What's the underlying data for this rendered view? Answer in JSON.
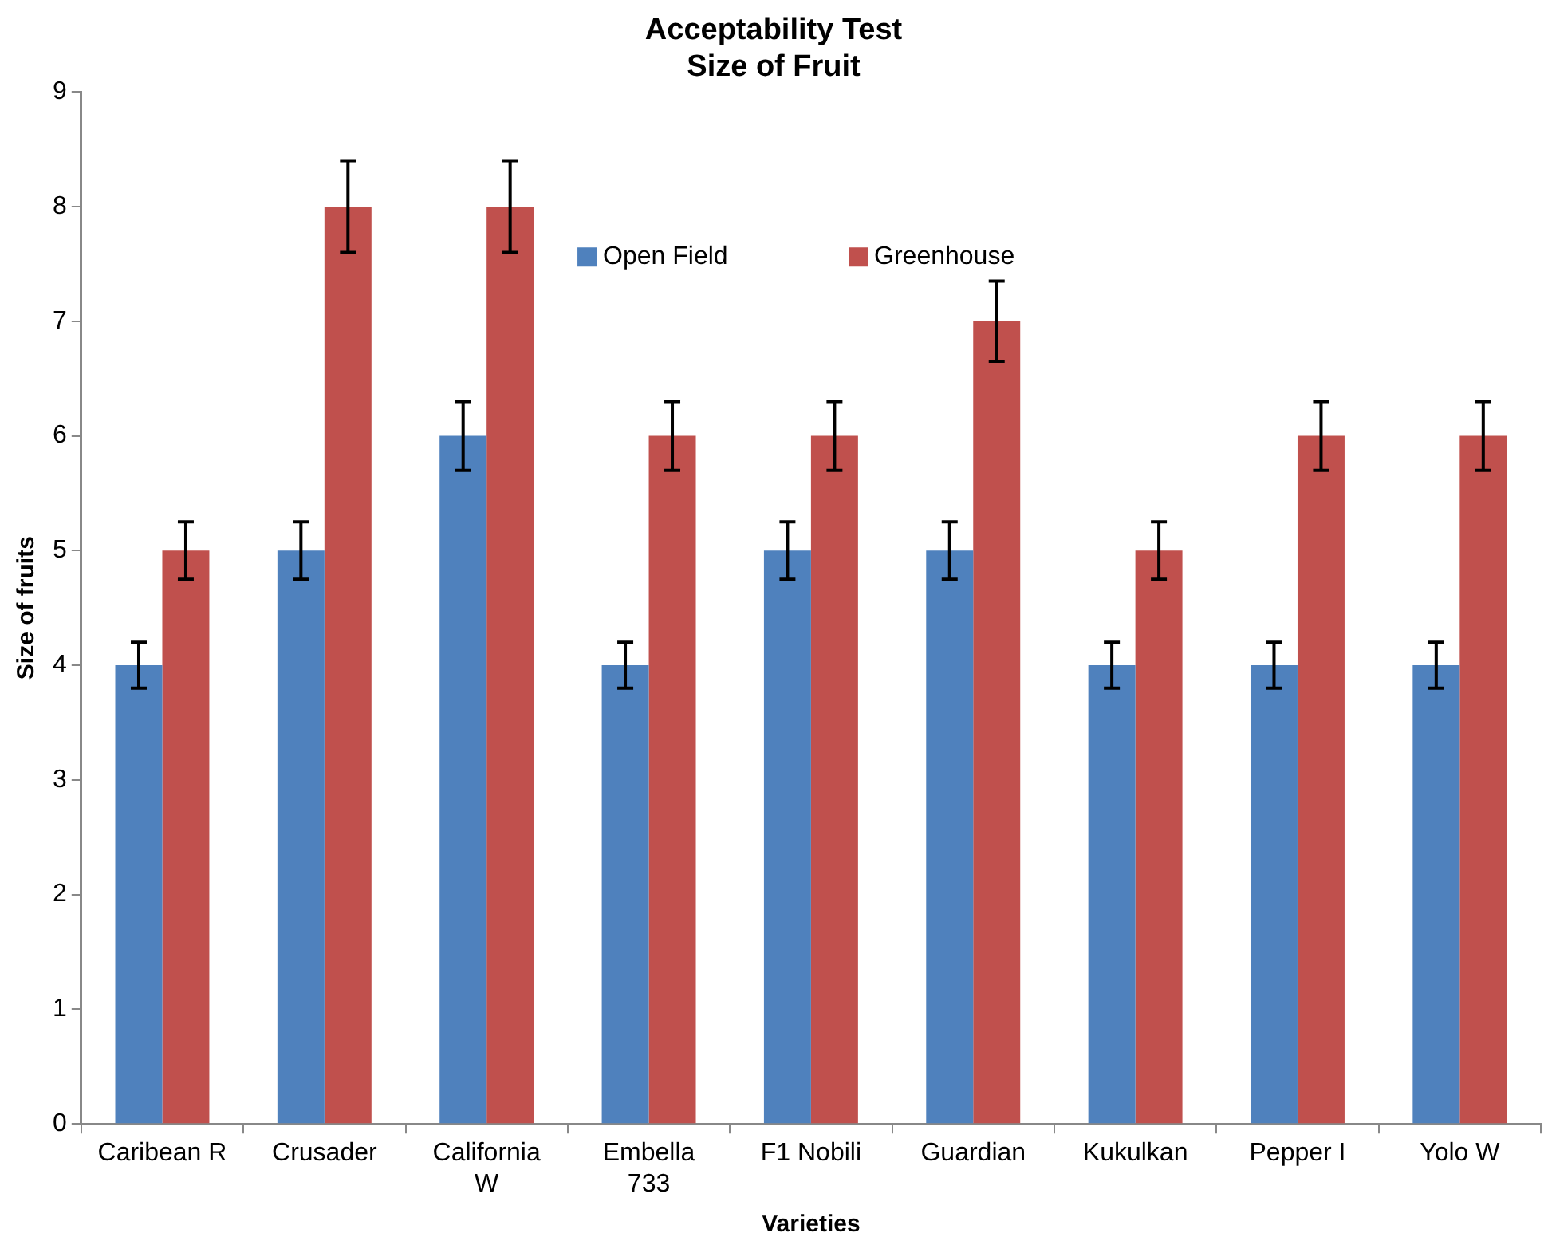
{
  "chart_data": {
    "type": "bar",
    "title": "Acceptability Test\nSize of Fruit",
    "xlabel": "Varieties",
    "ylabel": "Size of fruits",
    "categories": [
      "Caribean R",
      "Crusader",
      "California W",
      "Embella 733",
      "F1 Nobili",
      "Guardian",
      "Kukulkan",
      "Pepper I",
      "Yolo W"
    ],
    "series": [
      {
        "name": "Open Field",
        "color": "#4f81bd",
        "values": [
          4,
          5,
          6,
          4,
          5,
          5,
          4,
          4,
          4
        ],
        "errors": [
          0.2,
          0.25,
          0.3,
          0.2,
          0.25,
          0.25,
          0.2,
          0.2,
          0.2
        ]
      },
      {
        "name": "Greenhouse",
        "color": "#c0504d",
        "values": [
          5,
          8,
          8,
          6,
          6,
          7,
          5,
          6,
          6
        ],
        "errors": [
          0.25,
          0.4,
          0.4,
          0.3,
          0.3,
          0.35,
          0.25,
          0.3,
          0.3
        ]
      }
    ],
    "ylim": [
      0,
      9
    ],
    "yticks": [
      0,
      1,
      2,
      3,
      4,
      5,
      6,
      7,
      8,
      9
    ],
    "grid": false,
    "legend": "top"
  }
}
